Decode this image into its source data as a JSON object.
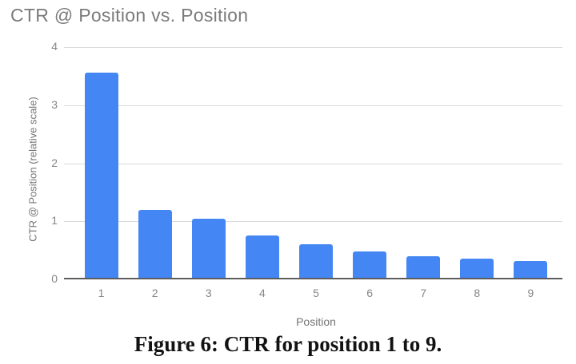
{
  "chart_data": {
    "type": "bar",
    "title": "CTR @ Position vs. Position",
    "xlabel": "Position",
    "ylabel": "CTR @ Position (relative scale)",
    "categories": [
      "1",
      "2",
      "3",
      "4",
      "5",
      "6",
      "7",
      "8",
      "9"
    ],
    "values": [
      3.56,
      1.2,
      1.05,
      0.75,
      0.6,
      0.48,
      0.4,
      0.36,
      0.31
    ],
    "ylim": [
      0,
      4
    ],
    "yticks": [
      0,
      1,
      2,
      3,
      4
    ],
    "grid": true,
    "legend": "none",
    "bar_color": "#4486f4"
  },
  "caption": "Figure 6: CTR for position 1 to 9.",
  "colors": {
    "bar": "#4486f4",
    "title_text": "#7b7b7b",
    "axis_text": "#757575",
    "tick_text": "#868686",
    "gridline": "#dbdbdb",
    "baseline": "#5c5c5c",
    "background": "#ffffff"
  }
}
